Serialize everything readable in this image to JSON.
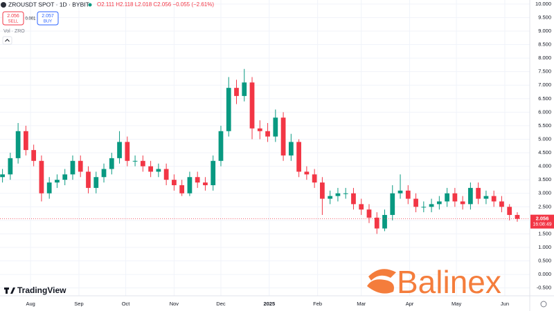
{
  "ui": {
    "symbol": "ZROUSDT SPOT · 1D · BYBIT",
    "ohlc": "O2.111 H2.118 L2.018 C2.056 −0.055 (−2.61%)",
    "sell_price": "2.056",
    "sell": "SELL",
    "spread": "0.001",
    "buy_price": "2.057",
    "buy": "BUY",
    "volume": "Vol · ZRO",
    "countdown": "16:08:49",
    "watermark": "TradingView",
    "logo": "Balinex"
  },
  "chart_data": {
    "type": "candlestick",
    "up_color": "#089981",
    "down_color": "#f23645",
    "grid": true,
    "x": [
      -18,
      -13,
      -8,
      -3,
      2,
      7,
      12,
      17,
      22,
      27,
      32,
      37,
      42,
      47,
      52,
      57,
      62,
      67,
      72,
      77,
      82,
      87,
      92,
      97,
      102,
      107,
      112,
      117,
      122,
      127,
      132,
      137,
      142,
      147,
      152,
      157,
      162,
      167,
      172,
      177,
      182,
      187,
      192,
      197,
      202,
      207,
      212,
      217,
      222,
      227,
      232,
      237,
      242,
      247,
      252,
      257,
      262,
      267,
      272,
      277,
      282,
      287,
      292,
      297,
      302,
      307,
      312
    ],
    "open": [
      3.6,
      3.7,
      4.3,
      5.3,
      4.6,
      4.2,
      3.0,
      3.4,
      3.5,
      3.7,
      4.2,
      3.8,
      3.2,
      3.6,
      3.9,
      4.3,
      4.9,
      4.2,
      4.2,
      4.0,
      3.8,
      3.9,
      3.5,
      3.3,
      3.0,
      3.6,
      3.4,
      3.3,
      4.2,
      5.3,
      6.9,
      6.6,
      7.1,
      5.4,
      5.3,
      5.1,
      5.8,
      4.4,
      4.9,
      3.8,
      3.7,
      3.4,
      2.8,
      2.9,
      3.0,
      3.0,
      2.6,
      2.4,
      2.1,
      1.7,
      2.2,
      3.0,
      3.1,
      2.8,
      2.5,
      2.5,
      2.6,
      2.7,
      3.0,
      2.7,
      2.6,
      3.2,
      2.8,
      2.9,
      2.7,
      2.5,
      2.2
    ],
    "high": [
      3.9,
      4.5,
      5.6,
      5.5,
      4.8,
      4.4,
      3.6,
      3.7,
      3.9,
      4.4,
      4.4,
      4.0,
      3.8,
      4.1,
      4.5,
      5.3,
      5.1,
      4.4,
      4.4,
      4.2,
      4.1,
      4.1,
      3.7,
      3.5,
      3.8,
      3.8,
      3.6,
      4.4,
      5.5,
      7.3,
      7.2,
      7.6,
      7.3,
      5.7,
      5.6,
      6.1,
      6.0,
      5.2,
      5.0,
      4.0,
      3.9,
      3.6,
      3.1,
      3.2,
      3.2,
      3.2,
      2.8,
      2.6,
      2.3,
      2.4,
      3.3,
      3.7,
      3.3,
      3.0,
      2.7,
      2.8,
      2.9,
      3.2,
      3.2,
      2.9,
      3.4,
      3.4,
      3.1,
      3.1,
      2.9,
      2.6,
      2.3
    ],
    "low": [
      3.4,
      3.5,
      4.1,
      4.4,
      4.0,
      2.7,
      2.8,
      3.2,
      3.3,
      3.5,
      3.6,
      3.0,
      3.0,
      3.4,
      3.7,
      4.1,
      4.0,
      4.0,
      3.8,
      3.6,
      3.6,
      3.3,
      3.1,
      2.9,
      2.9,
      3.2,
      3.1,
      3.1,
      4.0,
      5.1,
      6.3,
      6.4,
      5.0,
      5.0,
      4.9,
      4.9,
      4.2,
      4.2,
      3.6,
      3.5,
      3.2,
      2.2,
      2.6,
      2.7,
      2.8,
      2.4,
      2.2,
      1.9,
      1.5,
      1.6,
      2.0,
      2.8,
      2.6,
      2.3,
      2.3,
      2.3,
      2.4,
      2.5,
      2.5,
      2.4,
      2.4,
      2.6,
      2.6,
      2.5,
      2.3,
      2.0,
      1.95
    ],
    "close": [
      3.7,
      4.3,
      5.3,
      4.6,
      4.2,
      3.0,
      3.4,
      3.5,
      3.7,
      4.2,
      3.8,
      3.2,
      3.6,
      3.9,
      4.3,
      4.9,
      4.2,
      4.2,
      4.0,
      3.8,
      3.9,
      3.5,
      3.3,
      3.0,
      3.6,
      3.4,
      3.3,
      4.2,
      5.3,
      6.9,
      6.6,
      7.1,
      5.4,
      5.3,
      5.1,
      5.8,
      4.4,
      4.9,
      3.8,
      3.7,
      3.4,
      2.8,
      2.9,
      3.0,
      3.0,
      2.6,
      2.4,
      2.1,
      1.7,
      2.2,
      3.0,
      3.1,
      2.8,
      2.5,
      2.5,
      2.6,
      2.7,
      3.0,
      2.7,
      2.6,
      3.2,
      2.8,
      2.9,
      2.7,
      2.5,
      2.2,
      2.056
    ],
    "last_price": 2.056,
    "xlim": [
      -19.6,
      320
    ],
    "xticks": [
      {
        "value": 0,
        "label": "Aug"
      },
      {
        "value": 31,
        "label": "Sep"
      },
      {
        "value": 61,
        "label": "Oct"
      },
      {
        "value": 92,
        "label": "Nov"
      },
      {
        "value": 122,
        "label": "Dec"
      },
      {
        "value": 153,
        "label": "2025"
      },
      {
        "value": 184,
        "label": "Feb"
      },
      {
        "value": 212,
        "label": "Mar"
      },
      {
        "value": 243,
        "label": "Apr"
      },
      {
        "value": 273,
        "label": "May"
      },
      {
        "value": 304,
        "label": "Jun"
      }
    ],
    "ylim": [
      -0.79,
      10.15
    ],
    "yticks": [
      {
        "value": -0.5,
        "label": "-0.500"
      },
      {
        "value": 0,
        "label": "0.000"
      },
      {
        "value": 0.5,
        "label": "0.500"
      },
      {
        "value": 1,
        "label": "1.000"
      },
      {
        "value": 1.5,
        "label": "1.500"
      },
      {
        "value": 2,
        "label": "2.000"
      },
      {
        "value": 2.5,
        "label": "2.500"
      },
      {
        "value": 3,
        "label": "3.000"
      },
      {
        "value": 3.5,
        "label": "3.500"
      },
      {
        "value": 4,
        "label": "4.000"
      },
      {
        "value": 4.5,
        "label": "4.500"
      },
      {
        "value": 5,
        "label": "5.000"
      },
      {
        "value": 5.5,
        "label": "5.500"
      },
      {
        "value": 6,
        "label": "6.000"
      },
      {
        "value": 6.5,
        "label": "6.500"
      },
      {
        "value": 7,
        "label": "7.000"
      },
      {
        "value": 7.5,
        "label": "7.500"
      },
      {
        "value": 8,
        "label": "8.000"
      },
      {
        "value": 8.5,
        "label": "8.500"
      },
      {
        "value": 9,
        "label": "9.000"
      },
      {
        "value": 9.5,
        "label": "9.500"
      },
      {
        "value": 10,
        "label": "10.000"
      }
    ]
  }
}
